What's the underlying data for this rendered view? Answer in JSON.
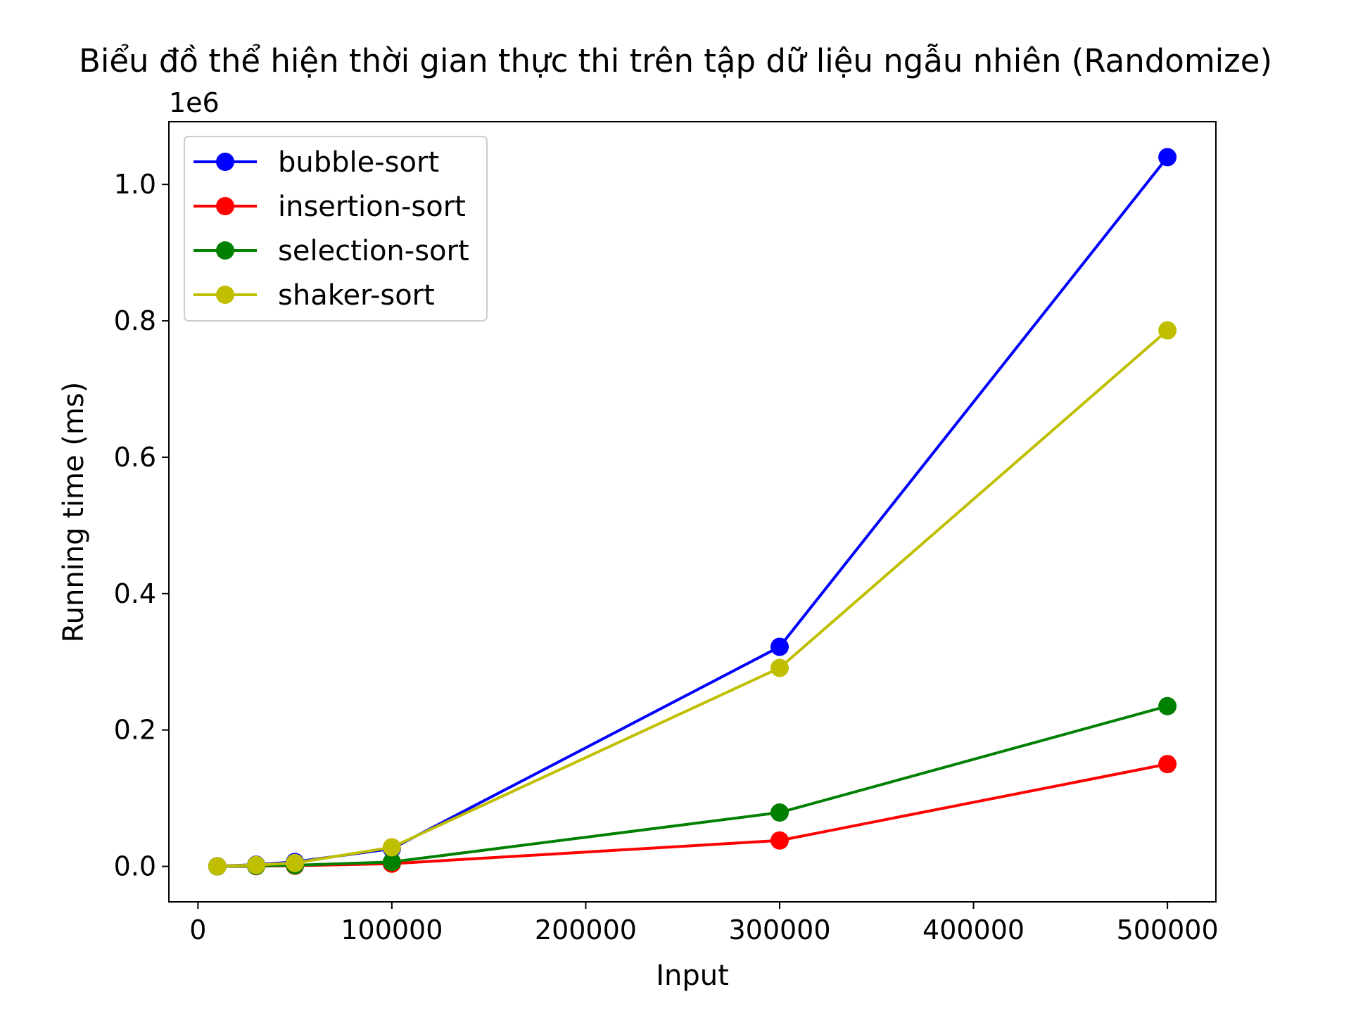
{
  "chart_data": {
    "type": "line",
    "title": "Biểu đồ thể hiện thời gian thực thi trên tập dữ liệu ngẫu nhiên (Randomize)",
    "xlabel": "Input",
    "ylabel": "Running time (ms)",
    "y_offset_label": "1e6",
    "x": [
      10000,
      30000,
      50000,
      100000,
      300000,
      500000
    ],
    "xlim": [
      -15000,
      525000
    ],
    "ylim": [
      -0.052,
      1.092
    ],
    "y_scale_factor": 1000000,
    "x_ticks": [
      0,
      100000,
      200000,
      300000,
      400000,
      500000
    ],
    "x_tick_labels": [
      "0",
      "100000",
      "200000",
      "300000",
      "400000",
      "500000"
    ],
    "y_ticks": [
      0.0,
      0.2,
      0.4,
      0.6,
      0.8,
      1.0
    ],
    "y_tick_labels": [
      "0.0",
      "0.2",
      "0.4",
      "0.6",
      "0.8",
      "1.0"
    ],
    "legend_position": "top-left",
    "grid": false,
    "series": [
      {
        "name": "bubble-sort",
        "color": "#0000ff",
        "values": [
          0.0003,
          0.0025,
          0.0065,
          0.026,
          0.322,
          1.04
        ]
      },
      {
        "name": "insertion-sort",
        "color": "#ff0000",
        "values": [
          4e-05,
          0.0004,
          0.001,
          0.004,
          0.038,
          0.15
        ]
      },
      {
        "name": "selection-sort",
        "color": "#008000",
        "values": [
          7e-05,
          0.0007,
          0.0017,
          0.0065,
          0.079,
          0.235
        ]
      },
      {
        "name": "shaker-sort",
        "color": "#bfbf00",
        "values": [
          0.0002,
          0.002,
          0.005,
          0.028,
          0.291,
          0.786
        ]
      }
    ]
  }
}
